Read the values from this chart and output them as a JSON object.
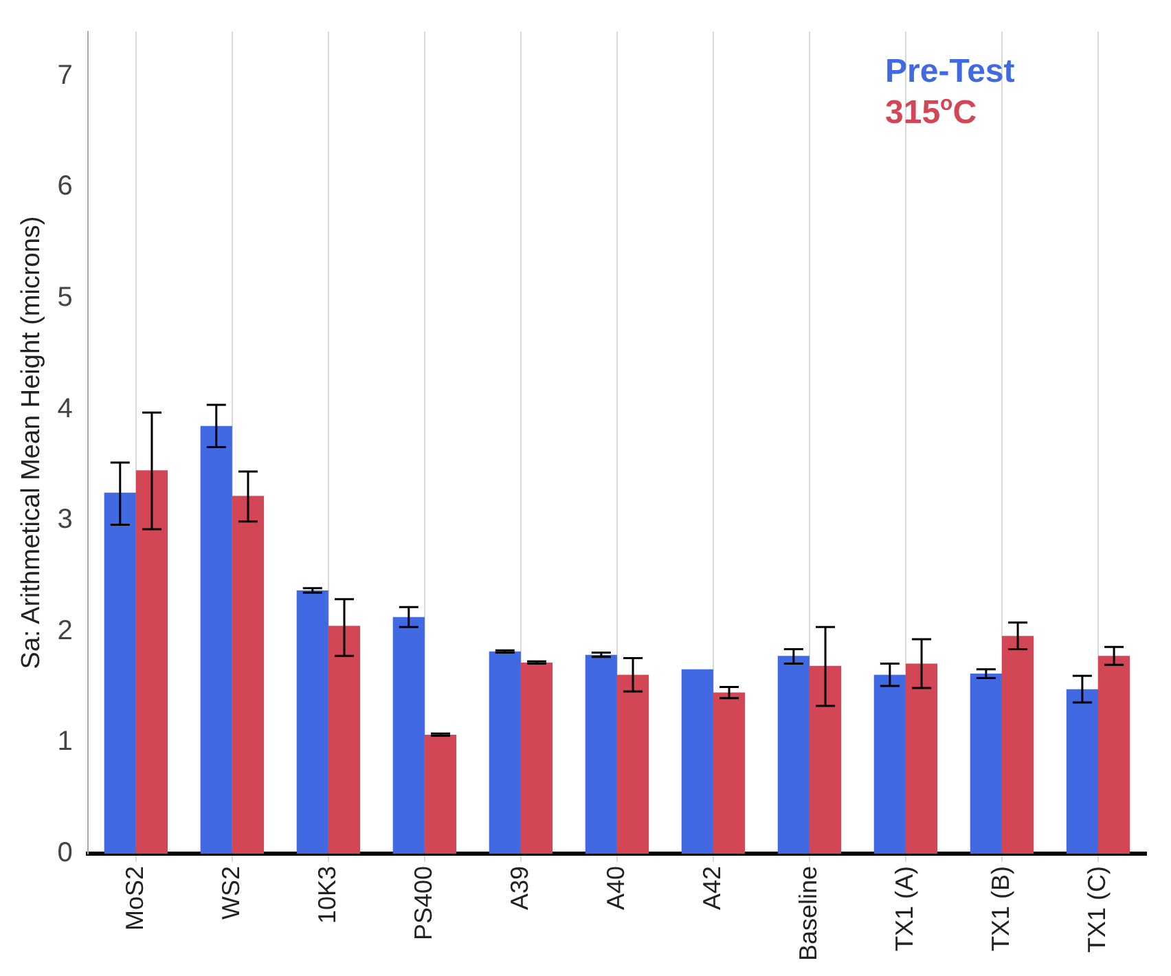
{
  "chart_data": {
    "type": "bar",
    "ylabel": "Sa: Arithmetical Mean Height (microns)",
    "categories": [
      "MoS2",
      "WS2",
      "10K3",
      "PS400",
      "A39",
      "A40",
      "A42",
      "Baseline",
      "TX1 (A)",
      "TX1 (B)",
      "TX1 (C)"
    ],
    "series": [
      {
        "name": "Pre-Test",
        "color": "#4169e1",
        "values": [
          3.25,
          3.85,
          2.37,
          2.13,
          1.82,
          1.79,
          1.66,
          1.78,
          1.61,
          1.62,
          1.48
        ],
        "errors": [
          [
            2.96,
            3.52
          ],
          [
            3.66,
            4.04
          ],
          [
            2.35,
            2.39
          ],
          [
            2.04,
            2.22
          ],
          [
            1.81,
            1.83
          ],
          [
            1.77,
            1.81
          ],
          null,
          [
            1.71,
            1.84
          ],
          [
            1.51,
            1.71
          ],
          [
            1.58,
            1.66
          ],
          [
            1.36,
            1.6
          ]
        ]
      },
      {
        "name": "315$^{o}$C",
        "color": "#d34656",
        "values": [
          3.45,
          3.22,
          2.05,
          1.07,
          1.72,
          1.61,
          1.45,
          1.69,
          1.71,
          1.96,
          1.78
        ],
        "errors": [
          [
            2.92,
            3.97
          ],
          [
            2.99,
            3.44
          ],
          [
            1.78,
            2.29
          ],
          [
            1.06,
            1.08
          ],
          [
            1.71,
            1.73
          ],
          [
            1.46,
            1.76
          ],
          [
            1.4,
            1.5
          ],
          [
            1.33,
            2.04
          ],
          [
            1.49,
            1.93
          ],
          [
            1.84,
            2.08
          ],
          [
            1.7,
            1.86
          ]
        ]
      }
    ],
    "ylim": [
      0,
      7.4
    ],
    "yticks": [
      0,
      1,
      2,
      3,
      4,
      5,
      6,
      7
    ],
    "grid": "x",
    "legend": "top right"
  }
}
